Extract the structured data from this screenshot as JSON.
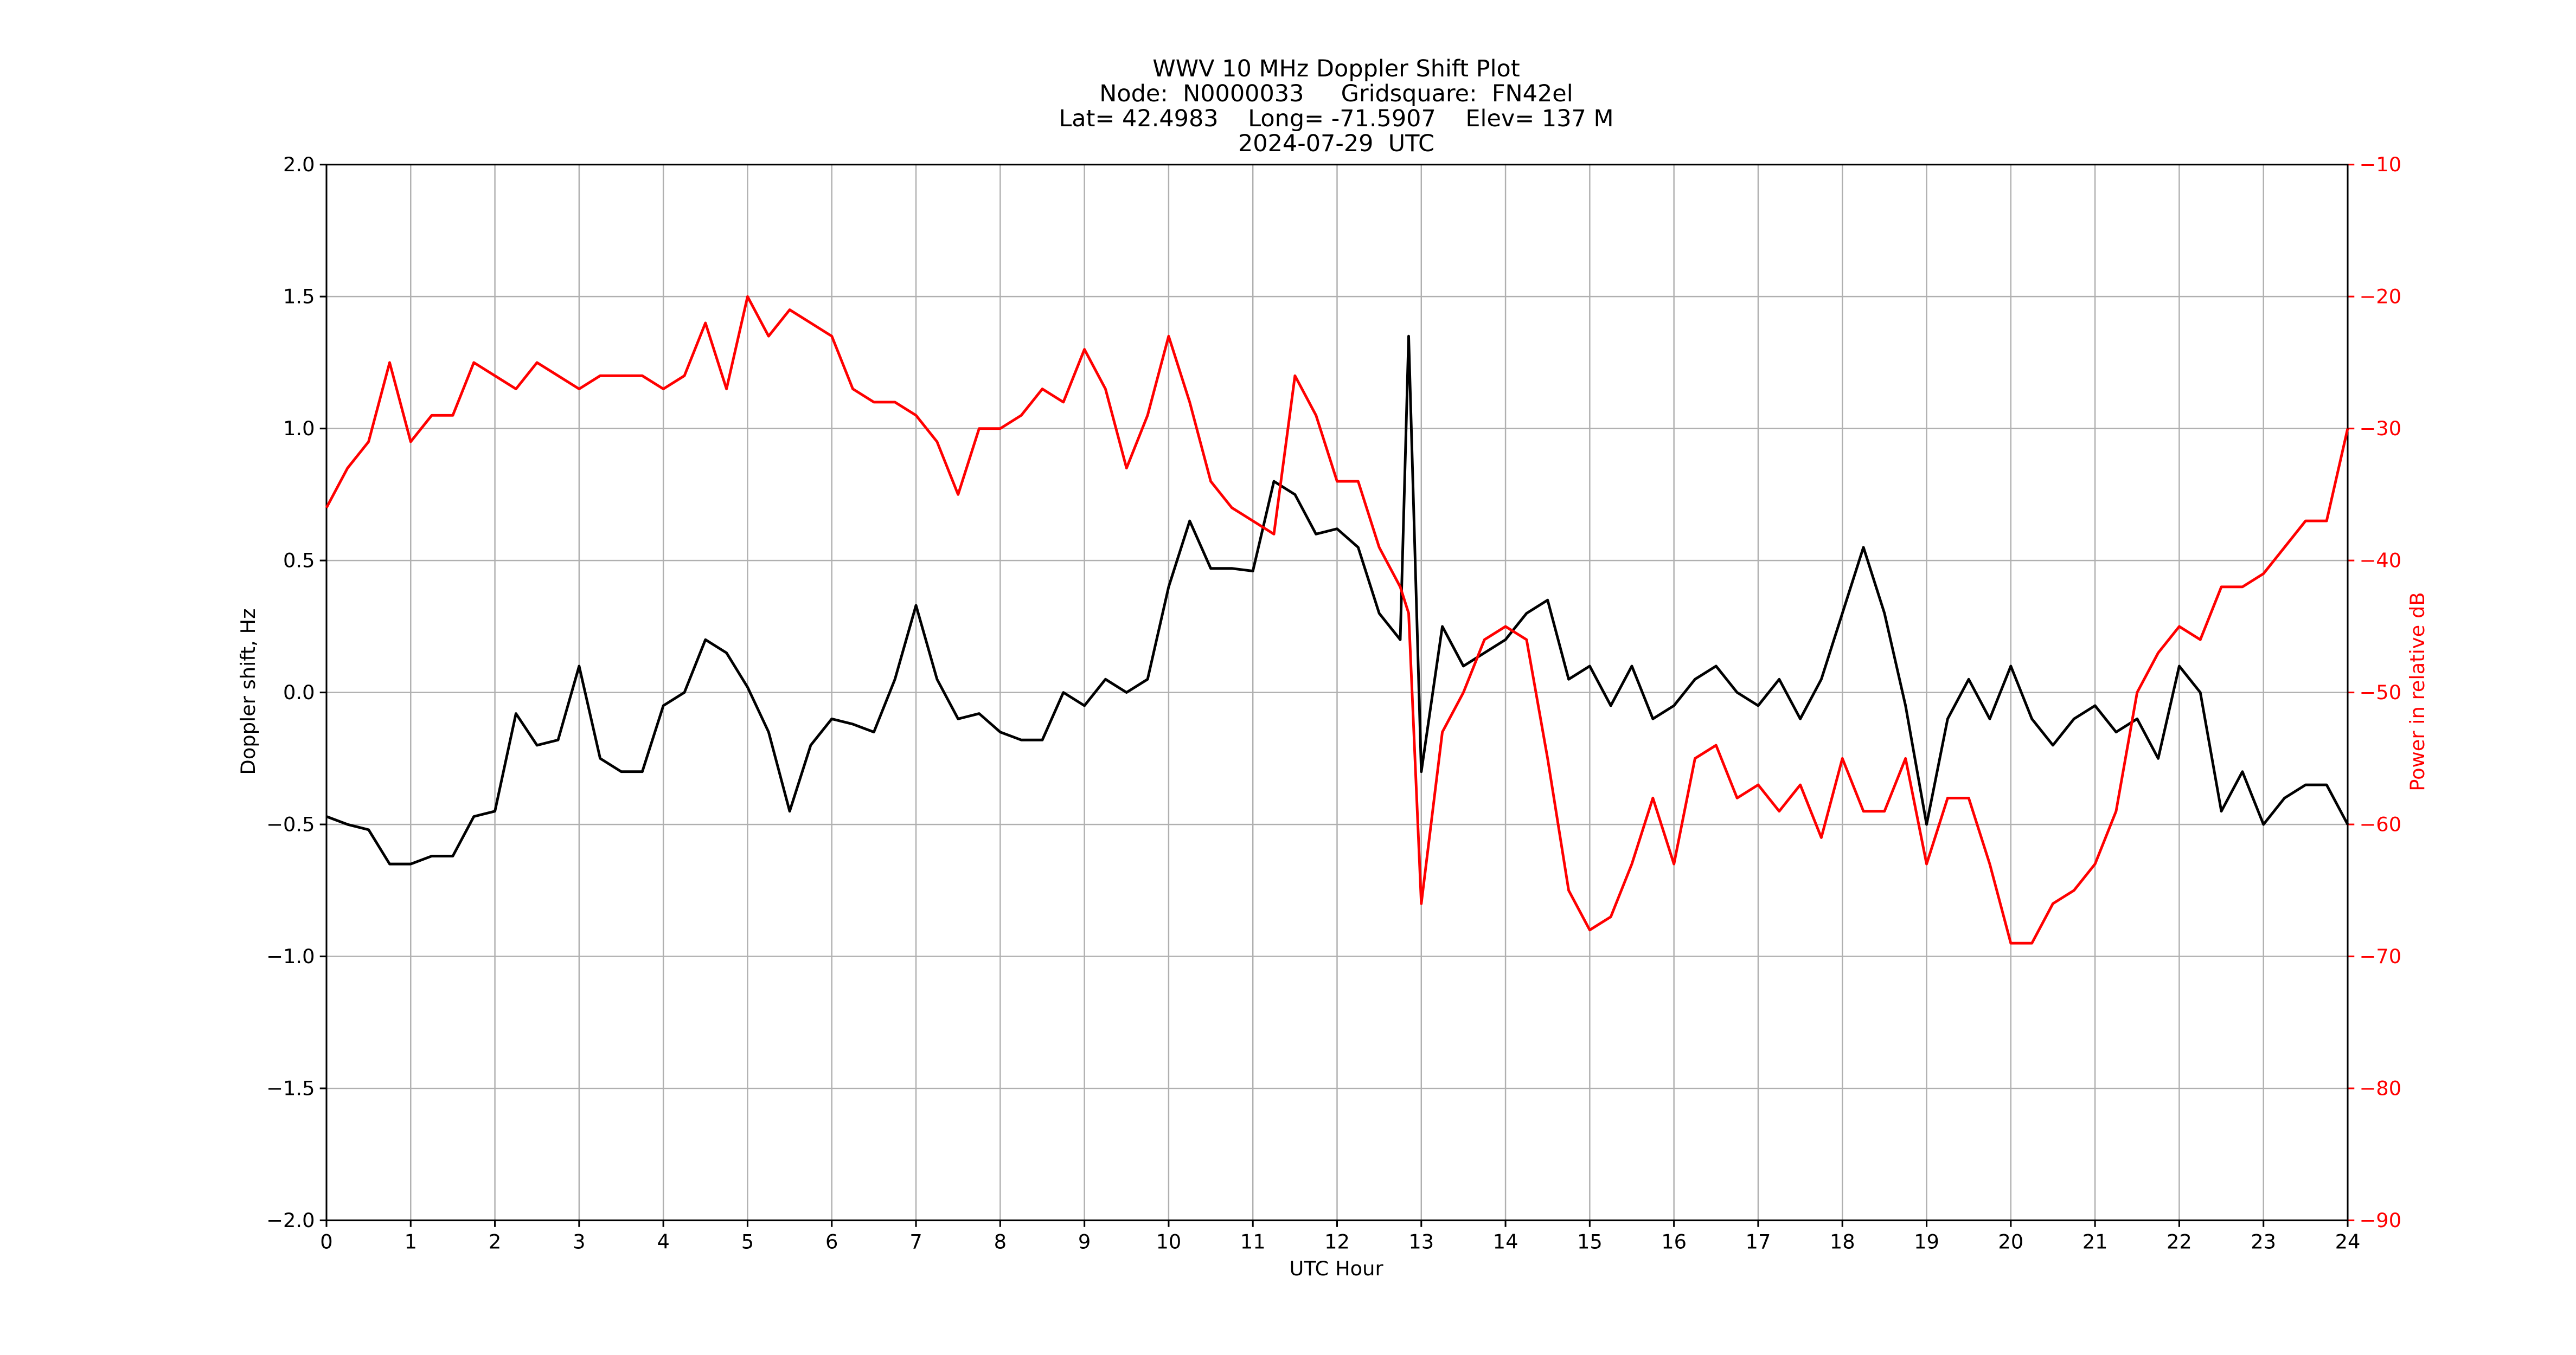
{
  "chart_data": {
    "type": "line",
    "title": [
      "WWV 10 MHz Doppler Shift Plot",
      "Node:  N0000033     Gridsquare:  FN42el",
      "Lat= 42.4983    Long= -71.5907    Elev= 137 M",
      "2024-07-29  UTC"
    ],
    "xlabel": "UTC Hour",
    "ylabel": "Doppler shift, Hz",
    "y2label": "Power in relative dB",
    "grid": true,
    "xlim": [
      0,
      24
    ],
    "xticks": [
      0,
      1,
      2,
      3,
      4,
      5,
      6,
      7,
      8,
      9,
      10,
      11,
      12,
      13,
      14,
      15,
      16,
      17,
      18,
      19,
      20,
      21,
      22,
      23,
      24
    ],
    "ylim": [
      -2,
      2
    ],
    "yticks": [
      {
        "value": -2,
        "label": "−2.0"
      },
      {
        "value": -1.5,
        "label": "−1.5"
      },
      {
        "value": -1,
        "label": "−1.0"
      },
      {
        "value": -0.5,
        "label": "−0.5"
      },
      {
        "value": 0,
        "label": "0.0"
      },
      {
        "value": 0.5,
        "label": "0.5"
      },
      {
        "value": 1,
        "label": "1.0"
      },
      {
        "value": 1.5,
        "label": "1.5"
      },
      {
        "value": 2,
        "label": "2.0"
      }
    ],
    "y2lim": [
      -90,
      -10
    ],
    "y2ticks": [
      {
        "value": -90,
        "label": "−90"
      },
      {
        "value": -80,
        "label": "−80"
      },
      {
        "value": -70,
        "label": "−70"
      },
      {
        "value": -60,
        "label": "−60"
      },
      {
        "value": -50,
        "label": "−50"
      },
      {
        "value": -40,
        "label": "−40"
      },
      {
        "value": -30,
        "label": "−30"
      },
      {
        "value": -20,
        "label": "−20"
      },
      {
        "value": -10,
        "label": "−10"
      }
    ],
    "x": [
      0,
      0.25,
      0.5,
      0.75,
      1,
      1.25,
      1.5,
      1.75,
      2,
      2.25,
      2.5,
      2.75,
      3,
      3.25,
      3.5,
      3.75,
      4,
      4.25,
      4.5,
      4.75,
      5,
      5.25,
      5.5,
      5.75,
      6,
      6.25,
      6.5,
      6.75,
      7,
      7.25,
      7.5,
      7.75,
      8,
      8.25,
      8.5,
      8.75,
      9,
      9.25,
      9.5,
      9.75,
      10,
      10.25,
      10.5,
      10.75,
      11,
      11.25,
      11.5,
      11.75,
      12,
      12.25,
      12.5,
      12.75,
      12.85,
      13,
      13.25,
      13.5,
      13.75,
      14,
      14.25,
      14.5,
      14.75,
      15,
      15.25,
      15.5,
      15.75,
      16,
      16.25,
      16.5,
      16.75,
      17,
      17.25,
      17.5,
      17.75,
      18,
      18.25,
      18.5,
      18.75,
      19,
      19.25,
      19.5,
      19.75,
      20,
      20.25,
      20.5,
      20.75,
      21,
      21.25,
      21.5,
      21.75,
      22,
      22.25,
      22.5,
      22.75,
      23,
      23.25,
      23.5,
      23.75,
      24
    ],
    "series": [
      {
        "color": "#000000",
        "values": [
          -0.47,
          -0.5,
          -0.52,
          -0.65,
          -0.65,
          -0.62,
          -0.62,
          -0.47,
          -0.45,
          -0.08,
          -0.2,
          -0.18,
          0.1,
          -0.25,
          -0.3,
          -0.3,
          -0.05,
          0,
          0.2,
          0.15,
          0.02,
          -0.15,
          -0.45,
          -0.2,
          -0.1,
          -0.12,
          -0.15,
          0.05,
          0.33,
          0.05,
          -0.1,
          -0.08,
          -0.15,
          -0.18,
          -0.18,
          0,
          -0.05,
          0.05,
          0,
          0.05,
          0.4,
          0.65,
          0.47,
          0.47,
          0.46,
          0.8,
          0.75,
          0.6,
          0.62,
          0.55,
          0.3,
          0.2,
          1.35,
          -0.3,
          0.25,
          0.1,
          0.15,
          0.2,
          0.3,
          0.35,
          0.05,
          0.1,
          -0.05,
          0.1,
          -0.1,
          -0.05,
          0.05,
          0.1,
          0,
          -0.05,
          0.05,
          -0.1,
          0.05,
          0.3,
          0.55,
          0.3,
          -0.05,
          -0.5,
          -0.1,
          0.05,
          -0.1,
          0.1,
          -0.1,
          -0.2,
          -0.1,
          -0.05,
          -0.15,
          -0.1,
          -0.25,
          0.1,
          0,
          -0.45,
          -0.3,
          -0.5,
          -0.4,
          -0.35,
          -0.35,
          -0.5
        ]
      },
      {
        "color": "#ff0000",
        "axis": "y2",
        "values": [
          -36,
          -33,
          -31,
          -25,
          -31,
          -29,
          -29,
          -25,
          -26,
          -27,
          -25,
          -26,
          -27,
          -26,
          -26,
          -26,
          -27,
          -26,
          -22,
          -27,
          -20,
          -23,
          -21,
          -22,
          -23,
          -27,
          -28,
          -28,
          -29,
          -31,
          -35,
          -30,
          -30,
          -29,
          -27,
          -28,
          -24,
          -27,
          -33,
          -29,
          -23,
          -28,
          -34,
          -36,
          -37,
          -38,
          -26,
          -29,
          -34,
          -34,
          -39,
          -42,
          -44,
          -66,
          -53,
          -50,
          -46,
          -45,
          -46,
          -55,
          -65,
          -68,
          -67,
          -63,
          -58,
          -63,
          -55,
          -54,
          -58,
          -57,
          -59,
          -57,
          -61,
          -55,
          -59,
          -59,
          -55,
          -63,
          -58,
          -58,
          -63,
          -69,
          -69,
          -66,
          -65,
          -63,
          -59,
          -50,
          -47,
          -45,
          -46,
          -42,
          -42,
          -41,
          -39,
          -37,
          -37,
          -30
        ]
      }
    ]
  }
}
